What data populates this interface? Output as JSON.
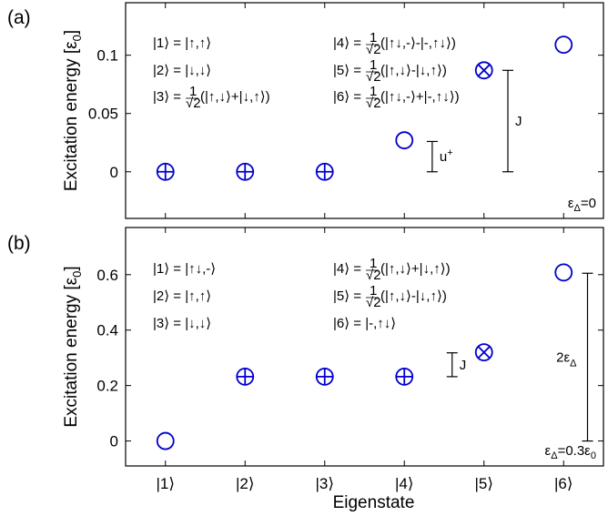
{
  "chart_data": [
    {
      "panel_label": "(a)",
      "type": "scatter",
      "xlabel": "",
      "ylabel": "Excitation energy [ε",
      "ylabel_sub": "0",
      "ylabel_close": "]",
      "ylim": [
        -0.04,
        0.145
      ],
      "xlim": [
        0.5,
        6.5
      ],
      "yticks": [
        0,
        0.05,
        0.1
      ],
      "ytick_labels": [
        "0",
        "0.05",
        "0.1"
      ],
      "points": [
        {
          "x": 1,
          "y": 0.0,
          "marker": "oplus"
        },
        {
          "x": 2,
          "y": 0.0,
          "marker": "oplus"
        },
        {
          "x": 3,
          "y": 0.0,
          "marker": "oplus"
        },
        {
          "x": 4,
          "y": 0.027,
          "marker": "circle"
        },
        {
          "x": 5,
          "y": 0.087,
          "marker": "otimes"
        },
        {
          "x": 6,
          "y": 0.109,
          "marker": "circle"
        }
      ],
      "brackets": [
        {
          "x": 4.35,
          "y0": 0.0,
          "y1": 0.026,
          "label": "u",
          "label_sup": "+"
        },
        {
          "x": 5.3,
          "y0": 0.0,
          "y1": 0.087,
          "label": "J",
          "label_sup": ""
        }
      ],
      "param_label": {
        "main": "ε",
        "sub": "Δ",
        "rest": "=0",
        "rest_sub": ""
      },
      "states_left": [
        {
          "ket": "|1⟩",
          "eq": "= |↑,↑⟩"
        },
        {
          "ket": "|2⟩",
          "eq": "= |↓,↓⟩"
        },
        {
          "ket": "|3⟩",
          "eq": "(|↑,↓⟩+|↓,↑⟩)",
          "frac": true
        }
      ],
      "states_right": [
        {
          "ket": "|4⟩",
          "eq": "(|↑↓,-⟩-|-,↑↓⟩)",
          "frac": true
        },
        {
          "ket": "|5⟩",
          "eq": "(|↑,↓⟩-|↓,↑⟩)",
          "frac": true
        },
        {
          "ket": "|6⟩",
          "eq": "(|↑↓,-⟩+|-,↑↓⟩)",
          "frac": true
        }
      ]
    },
    {
      "panel_label": "(b)",
      "type": "scatter",
      "xlabel": "Eigenstate",
      "ylabel": "Excitation energy [ε",
      "ylabel_sub": "0",
      "ylabel_close": "]",
      "ylim": [
        -0.09,
        0.77
      ],
      "xlim": [
        0.5,
        6.5
      ],
      "yticks": [
        0,
        0.2,
        0.4,
        0.6
      ],
      "ytick_labels": [
        "0",
        "0.2",
        "0.4",
        "0.6"
      ],
      "xtick_labels": [
        "|1⟩",
        "|2⟩",
        "|3⟩",
        "|4⟩",
        "|5⟩",
        "|6⟩"
      ],
      "points": [
        {
          "x": 1,
          "y": 0.0,
          "marker": "circle"
        },
        {
          "x": 2,
          "y": 0.232,
          "marker": "oplus"
        },
        {
          "x": 3,
          "y": 0.232,
          "marker": "oplus"
        },
        {
          "x": 4,
          "y": 0.232,
          "marker": "oplus"
        },
        {
          "x": 5,
          "y": 0.32,
          "marker": "otimes"
        },
        {
          "x": 6,
          "y": 0.608,
          "marker": "circle"
        }
      ],
      "brackets": [
        {
          "x": 4.6,
          "y0": 0.232,
          "y1": 0.318,
          "label": "J",
          "label_sup": ""
        },
        {
          "x": 6.3,
          "y0": 0.0,
          "y1": 0.605,
          "label": "2ε",
          "label_sub": "Δ",
          "label_left": true
        }
      ],
      "param_label": {
        "main": "ε",
        "sub": "Δ",
        "rest": "=0.3ε",
        "rest_sub": "0"
      },
      "states_left": [
        {
          "ket": "|1⟩",
          "eq": "= |↑↓,-⟩"
        },
        {
          "ket": "|2⟩",
          "eq": "= |↑,↑⟩"
        },
        {
          "ket": "|3⟩",
          "eq": "= |↓,↓⟩"
        }
      ],
      "states_right": [
        {
          "ket": "|4⟩",
          "eq": "(|↑,↓⟩+|↓,↑⟩)",
          "frac": true
        },
        {
          "ket": "|5⟩",
          "eq": "(|↑,↓⟩-|↓,↑⟩)",
          "frac": true
        },
        {
          "ket": "|6⟩",
          "eq": "= |-,↑↓⟩"
        }
      ]
    }
  ],
  "colors": {
    "marker": "#0000cc",
    "axis": "#000000"
  }
}
